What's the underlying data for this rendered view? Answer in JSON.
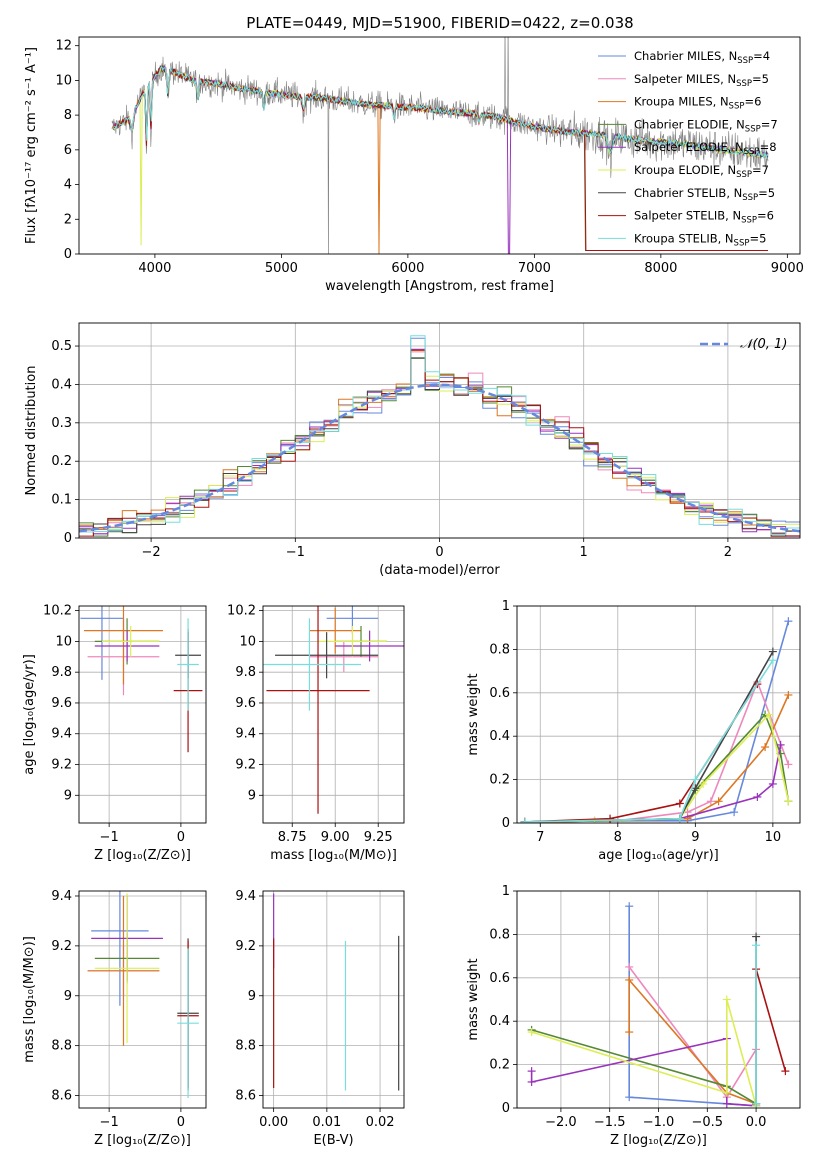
{
  "figure_title": "PLATE=0449, MJD=51900, FIBERID=0422, z=0.038",
  "colors": {
    "c1": "#6688dd",
    "c2": "#ee88bb",
    "c3": "#dd7722",
    "c4": "#558833",
    "c5": "#9933bb",
    "c6": "#ddee55",
    "c7": "#444444",
    "c8": "#aa1111",
    "c9": "#77dddd",
    "data": "#808080"
  },
  "chart_data": [
    {
      "id": "spectrum",
      "type": "line",
      "xlabel": "wavelength [Angstrom, rest frame]",
      "ylabel": "Flux [fλ10⁻¹⁷ erg cm⁻² s⁻¹ A⁻¹]",
      "xlim": [
        3400,
        9100
      ],
      "ylim": [
        0,
        12.5
      ],
      "xticks": [
        4000,
        5000,
        6000,
        7000,
        8000,
        9000
      ],
      "yticks": [
        0,
        2,
        4,
        6,
        8,
        10,
        12
      ],
      "continuum": {
        "x": [
          3650,
          3800,
          3950,
          4050,
          4150,
          4300,
          4500,
          4700,
          4900,
          5100,
          5300,
          5500,
          5700,
          5900,
          6100,
          6300,
          6500,
          6700,
          6900,
          7100,
          7300,
          7500,
          7700,
          7900,
          8100,
          8300,
          8500,
          8700,
          8850
        ],
        "y": [
          7.2,
          7.8,
          9.8,
          10.7,
          10.5,
          10.0,
          9.8,
          9.5,
          9.3,
          9.1,
          9.0,
          8.8,
          8.6,
          8.5,
          8.4,
          8.2,
          8.1,
          7.9,
          7.5,
          7.2,
          7.0,
          6.9,
          6.7,
          6.5,
          6.4,
          6.2,
          6.0,
          5.8,
          5.7
        ]
      },
      "series": [
        {
          "name": "Chabrier MILES, N_SSP=4",
          "label_main": "Chabrier MILES, N",
          "label_sub": "SSP",
          "label_tail": "=4",
          "color": "#6688dd"
        },
        {
          "name": "Salpeter MILES, N_SSP=5",
          "label_main": "Salpeter MILES, N",
          "label_sub": "SSP",
          "label_tail": "=5",
          "color": "#ee88bb"
        },
        {
          "name": "Kroupa MILES, N_SSP=6",
          "label_main": "Kroupa MILES, N",
          "label_sub": "SSP",
          "label_tail": "=6",
          "color": "#dd7722"
        },
        {
          "name": "Chabrier ELODIE, N_SSP=7",
          "label_main": "Chabrier ELODIE, N",
          "label_sub": "SSP",
          "label_tail": "=7",
          "color": "#558833"
        },
        {
          "name": "Salpeter ELODIE, N_SSP=8",
          "label_main": "Salpeter ELODIE, N",
          "label_sub": "SSP",
          "label_tail": "=8",
          "color": "#9933bb"
        },
        {
          "name": "Kroupa ELODIE, N_SSP=7",
          "label_main": "Kroupa ELODIE, N",
          "label_sub": "SSP",
          "label_tail": "=7",
          "color": "#ddee55"
        },
        {
          "name": "Chabrier STELIB, N_SSP=5",
          "label_main": "Chabrier STELIB, N",
          "label_sub": "SSP",
          "label_tail": "=5",
          "color": "#444444"
        },
        {
          "name": "Salpeter STELIB, N_SSP=6",
          "label_main": "Salpeter STELIB, N",
          "label_sub": "SSP",
          "label_tail": "=6",
          "color": "#aa1111"
        },
        {
          "name": "Kroupa STELIB, N_SSP=5",
          "label_main": "Kroupa STELIB, N",
          "label_sub": "SSP",
          "label_tail": "=5",
          "color": "#77dddd"
        }
      ]
    },
    {
      "id": "residuals",
      "type": "histogram",
      "xlabel": "(data-model)/error",
      "ylabel": "Normed distribution",
      "xlim": [
        -2.5,
        2.5
      ],
      "ylim": [
        0,
        0.56
      ],
      "xticks": [
        -2,
        -1,
        0,
        1,
        2
      ],
      "yticks": [
        0.0,
        0.1,
        0.2,
        0.3,
        0.4,
        0.5
      ],
      "bin_width": 0.1,
      "legend": "𝒩(0, 1)",
      "reference_curve": "normal(0,1)"
    },
    {
      "id": "age_vs_Z",
      "type": "scatter",
      "xlabel": "Z [log₁₀(Z/Z⊙)]",
      "ylabel": "age  [log₁₀(age/yr)]",
      "xlim": [
        -1.42,
        0.35
      ],
      "ylim": [
        8.82,
        10.23
      ],
      "xticks": [
        -1,
        0
      ],
      "yticks": [
        9.0,
        9.2,
        9.4,
        9.6,
        9.8,
        10.0,
        10.2
      ],
      "points": [
        {
          "x": -1.1,
          "xerr": 0.3,
          "y": 10.15,
          "yerr": 0.4,
          "color": "#6688dd"
        },
        {
          "x": -0.8,
          "xerr": 0.5,
          "y": 9.9,
          "yerr": 0.25,
          "color": "#ee88bb"
        },
        {
          "x": -0.8,
          "xerr": 0.55,
          "y": 10.07,
          "yerr": 0.35,
          "color": "#dd7722"
        },
        {
          "x": -0.75,
          "xerr": 0.45,
          "y": 10.0,
          "yerr": 0.15,
          "color": "#558833"
        },
        {
          "x": -0.75,
          "xerr": 0.45,
          "y": 9.97,
          "yerr": 0.1,
          "color": "#9933bb"
        },
        {
          "x": -0.7,
          "xerr": 0.4,
          "y": 10.0,
          "yerr": 0.1,
          "color": "#ddee55"
        },
        {
          "x": 0.1,
          "xerr": 0.18,
          "y": 9.91,
          "yerr": 0.15,
          "color": "#444444"
        },
        {
          "x": 0.1,
          "xerr": 0.2,
          "y": 9.68,
          "yerr": 0.4,
          "color": "#aa1111"
        },
        {
          "x": 0.1,
          "xerr": 0.15,
          "y": 9.85,
          "yerr": 0.3,
          "color": "#77dddd"
        }
      ]
    },
    {
      "id": "age_vs_mass",
      "type": "scatter",
      "xlabel": "mass [log₁₀(M/M⊙)]",
      "ylabel": "",
      "xlim": [
        8.58,
        9.4
      ],
      "ylim": [
        8.82,
        10.23
      ],
      "xticks": [
        8.75,
        9.0,
        9.25
      ],
      "yticks": [
        9.0,
        9.2,
        9.4,
        9.6,
        9.8,
        10.0,
        10.2
      ],
      "points": [
        {
          "x": 9.1,
          "xerr": 0.15,
          "y": 10.15,
          "yerr": 0.1,
          "color": "#6688dd"
        },
        {
          "x": 9.05,
          "xerr": 0.2,
          "y": 9.9,
          "yerr": 0.1,
          "color": "#ee88bb"
        },
        {
          "x": 9.0,
          "xerr": 0.15,
          "y": 10.07,
          "yerr": 0.15,
          "color": "#dd7722"
        },
        {
          "x": 9.15,
          "xerr": 0.15,
          "y": 10.0,
          "yerr": 0.1,
          "color": "#558833"
        },
        {
          "x": 9.2,
          "xerr": 0.2,
          "y": 9.97,
          "yerr": 0.1,
          "color": "#9933bb"
        },
        {
          "x": 9.1,
          "xerr": 0.2,
          "y": 10.0,
          "yerr": 0.1,
          "color": "#ddee55"
        },
        {
          "x": 8.95,
          "xerr": 0.3,
          "y": 9.91,
          "yerr": 0.15,
          "color": "#444444"
        },
        {
          "x": 8.9,
          "xerr": 0.3,
          "y": 9.68,
          "yerr": 0.8,
          "color": "#aa1111"
        },
        {
          "x": 8.85,
          "xerr": 0.3,
          "y": 9.85,
          "yerr": 0.3,
          "color": "#77dddd"
        }
      ]
    },
    {
      "id": "mass_weight_vs_age",
      "type": "line",
      "xlabel": "age  [log₁₀(age/yr)]",
      "ylabel": "mass weight",
      "xlim": [
        6.7,
        10.35
      ],
      "ylim": [
        0,
        1.0
      ],
      "xticks": [
        7,
        8,
        9,
        10
      ],
      "yticks": [
        0.0,
        0.2,
        0.4,
        0.6,
        0.8,
        1.0
      ],
      "series": [
        {
          "color": "#6688dd",
          "x": [
            6.8,
            8.0,
            8.9,
            9.5,
            10.2
          ],
          "y": [
            0.005,
            0.01,
            0.01,
            0.05,
            0.93
          ]
        },
        {
          "color": "#ee88bb",
          "x": [
            6.8,
            8.0,
            8.9,
            9.2,
            9.8,
            10.2
          ],
          "y": [
            0.005,
            0.01,
            0.05,
            0.1,
            0.65,
            0.27
          ]
        },
        {
          "color": "#dd7722",
          "x": [
            6.8,
            7.9,
            8.9,
            9.3,
            9.9,
            10.2
          ],
          "y": [
            0.005,
            0.01,
            0.02,
            0.1,
            0.35,
            0.59
          ]
        },
        {
          "color": "#558833",
          "x": [
            6.8,
            7.9,
            8.8,
            9.0,
            9.9,
            10.1,
            10.2
          ],
          "y": [
            0.005,
            0.01,
            0.02,
            0.15,
            0.5,
            0.32,
            0.1
          ]
        },
        {
          "color": "#9933bb",
          "x": [
            6.8,
            7.7,
            8.8,
            9.8,
            10.0,
            10.1
          ],
          "y": [
            0.005,
            0.01,
            0.02,
            0.12,
            0.18,
            0.36
          ]
        },
        {
          "color": "#ddee55",
          "x": [
            6.8,
            7.7,
            8.8,
            9.1,
            9.95,
            10.2
          ],
          "y": [
            0.005,
            0.01,
            0.02,
            0.18,
            0.5,
            0.1
          ]
        },
        {
          "color": "#444444",
          "x": [
            6.8,
            8.8,
            9.0,
            10.0
          ],
          "y": [
            0.005,
            0.02,
            0.16,
            0.79
          ]
        },
        {
          "color": "#aa1111",
          "x": [
            6.8,
            7.9,
            8.8,
            9.8
          ],
          "y": [
            0.005,
            0.02,
            0.09,
            0.64
          ]
        },
        {
          "color": "#77dddd",
          "x": [
            6.8,
            8.8,
            9.0,
            10.0
          ],
          "y": [
            0.005,
            0.02,
            0.2,
            0.75
          ]
        }
      ]
    },
    {
      "id": "mass_vs_Z",
      "type": "scatter",
      "xlabel": "Z [log₁₀(Z/Z⊙)]",
      "ylabel": "mass [log₁₀(M/M⊙)]",
      "xlim": [
        -1.42,
        0.35
      ],
      "ylim": [
        8.55,
        9.42
      ],
      "xticks": [
        -1,
        0
      ],
      "yticks": [
        8.6,
        8.8,
        9.0,
        9.2,
        9.4
      ],
      "points": [
        {
          "x": -0.85,
          "xerr": 0.4,
          "y": 9.26,
          "yerr": 0.3,
          "color": "#6688dd"
        },
        {
          "x": -0.8,
          "xerr": 0.5,
          "y": 9.1,
          "yerr": 0.1,
          "color": "#ee88bb"
        },
        {
          "x": -0.8,
          "xerr": 0.5,
          "y": 9.1,
          "yerr": 0.3,
          "color": "#dd7722"
        },
        {
          "x": -0.75,
          "xerr": 0.45,
          "y": 9.15,
          "yerr": 0.1,
          "color": "#558833"
        },
        {
          "x": -0.75,
          "xerr": 0.5,
          "y": 9.23,
          "yerr": 0.17,
          "color": "#9933bb"
        },
        {
          "x": -0.75,
          "xerr": 0.45,
          "y": 9.11,
          "yerr": 0.3,
          "color": "#ddee55"
        },
        {
          "x": 0.1,
          "xerr": 0.15,
          "y": 8.93,
          "yerr": 0.3,
          "color": "#444444"
        },
        {
          "x": 0.1,
          "xerr": 0.15,
          "y": 8.92,
          "yerr": 0.3,
          "color": "#aa1111"
        },
        {
          "x": 0.1,
          "xerr": 0.15,
          "y": 8.89,
          "yerr": 0.3,
          "color": "#77dddd"
        }
      ]
    },
    {
      "id": "mass_vs_ebv",
      "type": "scatter",
      "xlabel": "E(B-V)",
      "ylabel": "",
      "xlim": [
        -0.002,
        0.0245
      ],
      "ylim": [
        8.55,
        9.42
      ],
      "xticks": [
        0.0,
        0.01,
        0.02
      ],
      "yticks": [
        8.6,
        8.8,
        9.0,
        9.2,
        9.4
      ],
      "points": [
        {
          "x": 0.0,
          "xerr": 0,
          "y": 9.26,
          "yerr": 0.15,
          "color": "#9933bb"
        },
        {
          "x": 0.0,
          "xerr": 0,
          "y": 8.93,
          "yerr": 0.3,
          "color": "#aa1111"
        },
        {
          "x": 0.0135,
          "xerr": 0,
          "y": 8.92,
          "yerr": 0.3,
          "color": "#77dddd"
        },
        {
          "x": 0.0235,
          "xerr": 0,
          "y": 8.93,
          "yerr": 0.31,
          "color": "#444444"
        }
      ]
    },
    {
      "id": "mass_weight_vs_Z",
      "type": "line",
      "xlabel": "Z [log₁₀(Z/Z⊙)]",
      "ylabel": "mass weight",
      "xlim": [
        -2.45,
        0.45
      ],
      "ylim": [
        0,
        1.0
      ],
      "xticks": [
        -2.0,
        -1.5,
        -1.0,
        -0.5,
        0.0
      ],
      "yticks": [
        0.0,
        0.2,
        0.4,
        0.6,
        0.8,
        1.0
      ],
      "series": [
        {
          "color": "#6688dd",
          "x": [
            -1.3,
            -1.3,
            0.0
          ],
          "y": [
            0.93,
            0.05,
            0.01
          ]
        },
        {
          "color": "#ee88bb",
          "x": [
            -1.3,
            -0.3,
            0.0
          ],
          "y": [
            0.65,
            0.05,
            0.27
          ]
        },
        {
          "color": "#dd7722",
          "x": [
            -1.3,
            -1.3,
            -0.3,
            0.0
          ],
          "y": [
            0.35,
            0.59,
            0.07,
            0.02
          ]
        },
        {
          "color": "#558833",
          "x": [
            -2.3,
            -0.3,
            0.0
          ],
          "y": [
            0.36,
            0.1,
            0.02
          ]
        },
        {
          "color": "#9933bb",
          "x": [
            -2.3,
            -2.3,
            -0.3,
            -0.3,
            0.0
          ],
          "y": [
            0.17,
            0.12,
            0.32,
            0.02,
            0.01
          ]
        },
        {
          "color": "#ddee55",
          "x": [
            -2.3,
            -0.3,
            -0.3,
            0.0
          ],
          "y": [
            0.35,
            0.07,
            0.5,
            0.01
          ]
        },
        {
          "color": "#444444",
          "x": [
            0.0,
            0.0
          ],
          "y": [
            0.79,
            0.02
          ]
        },
        {
          "color": "#aa1111",
          "x": [
            0.0,
            0.3
          ],
          "y": [
            0.64,
            0.17
          ]
        },
        {
          "color": "#77dddd",
          "x": [
            0.0,
            0.0
          ],
          "y": [
            0.75,
            0.02
          ]
        }
      ]
    }
  ]
}
